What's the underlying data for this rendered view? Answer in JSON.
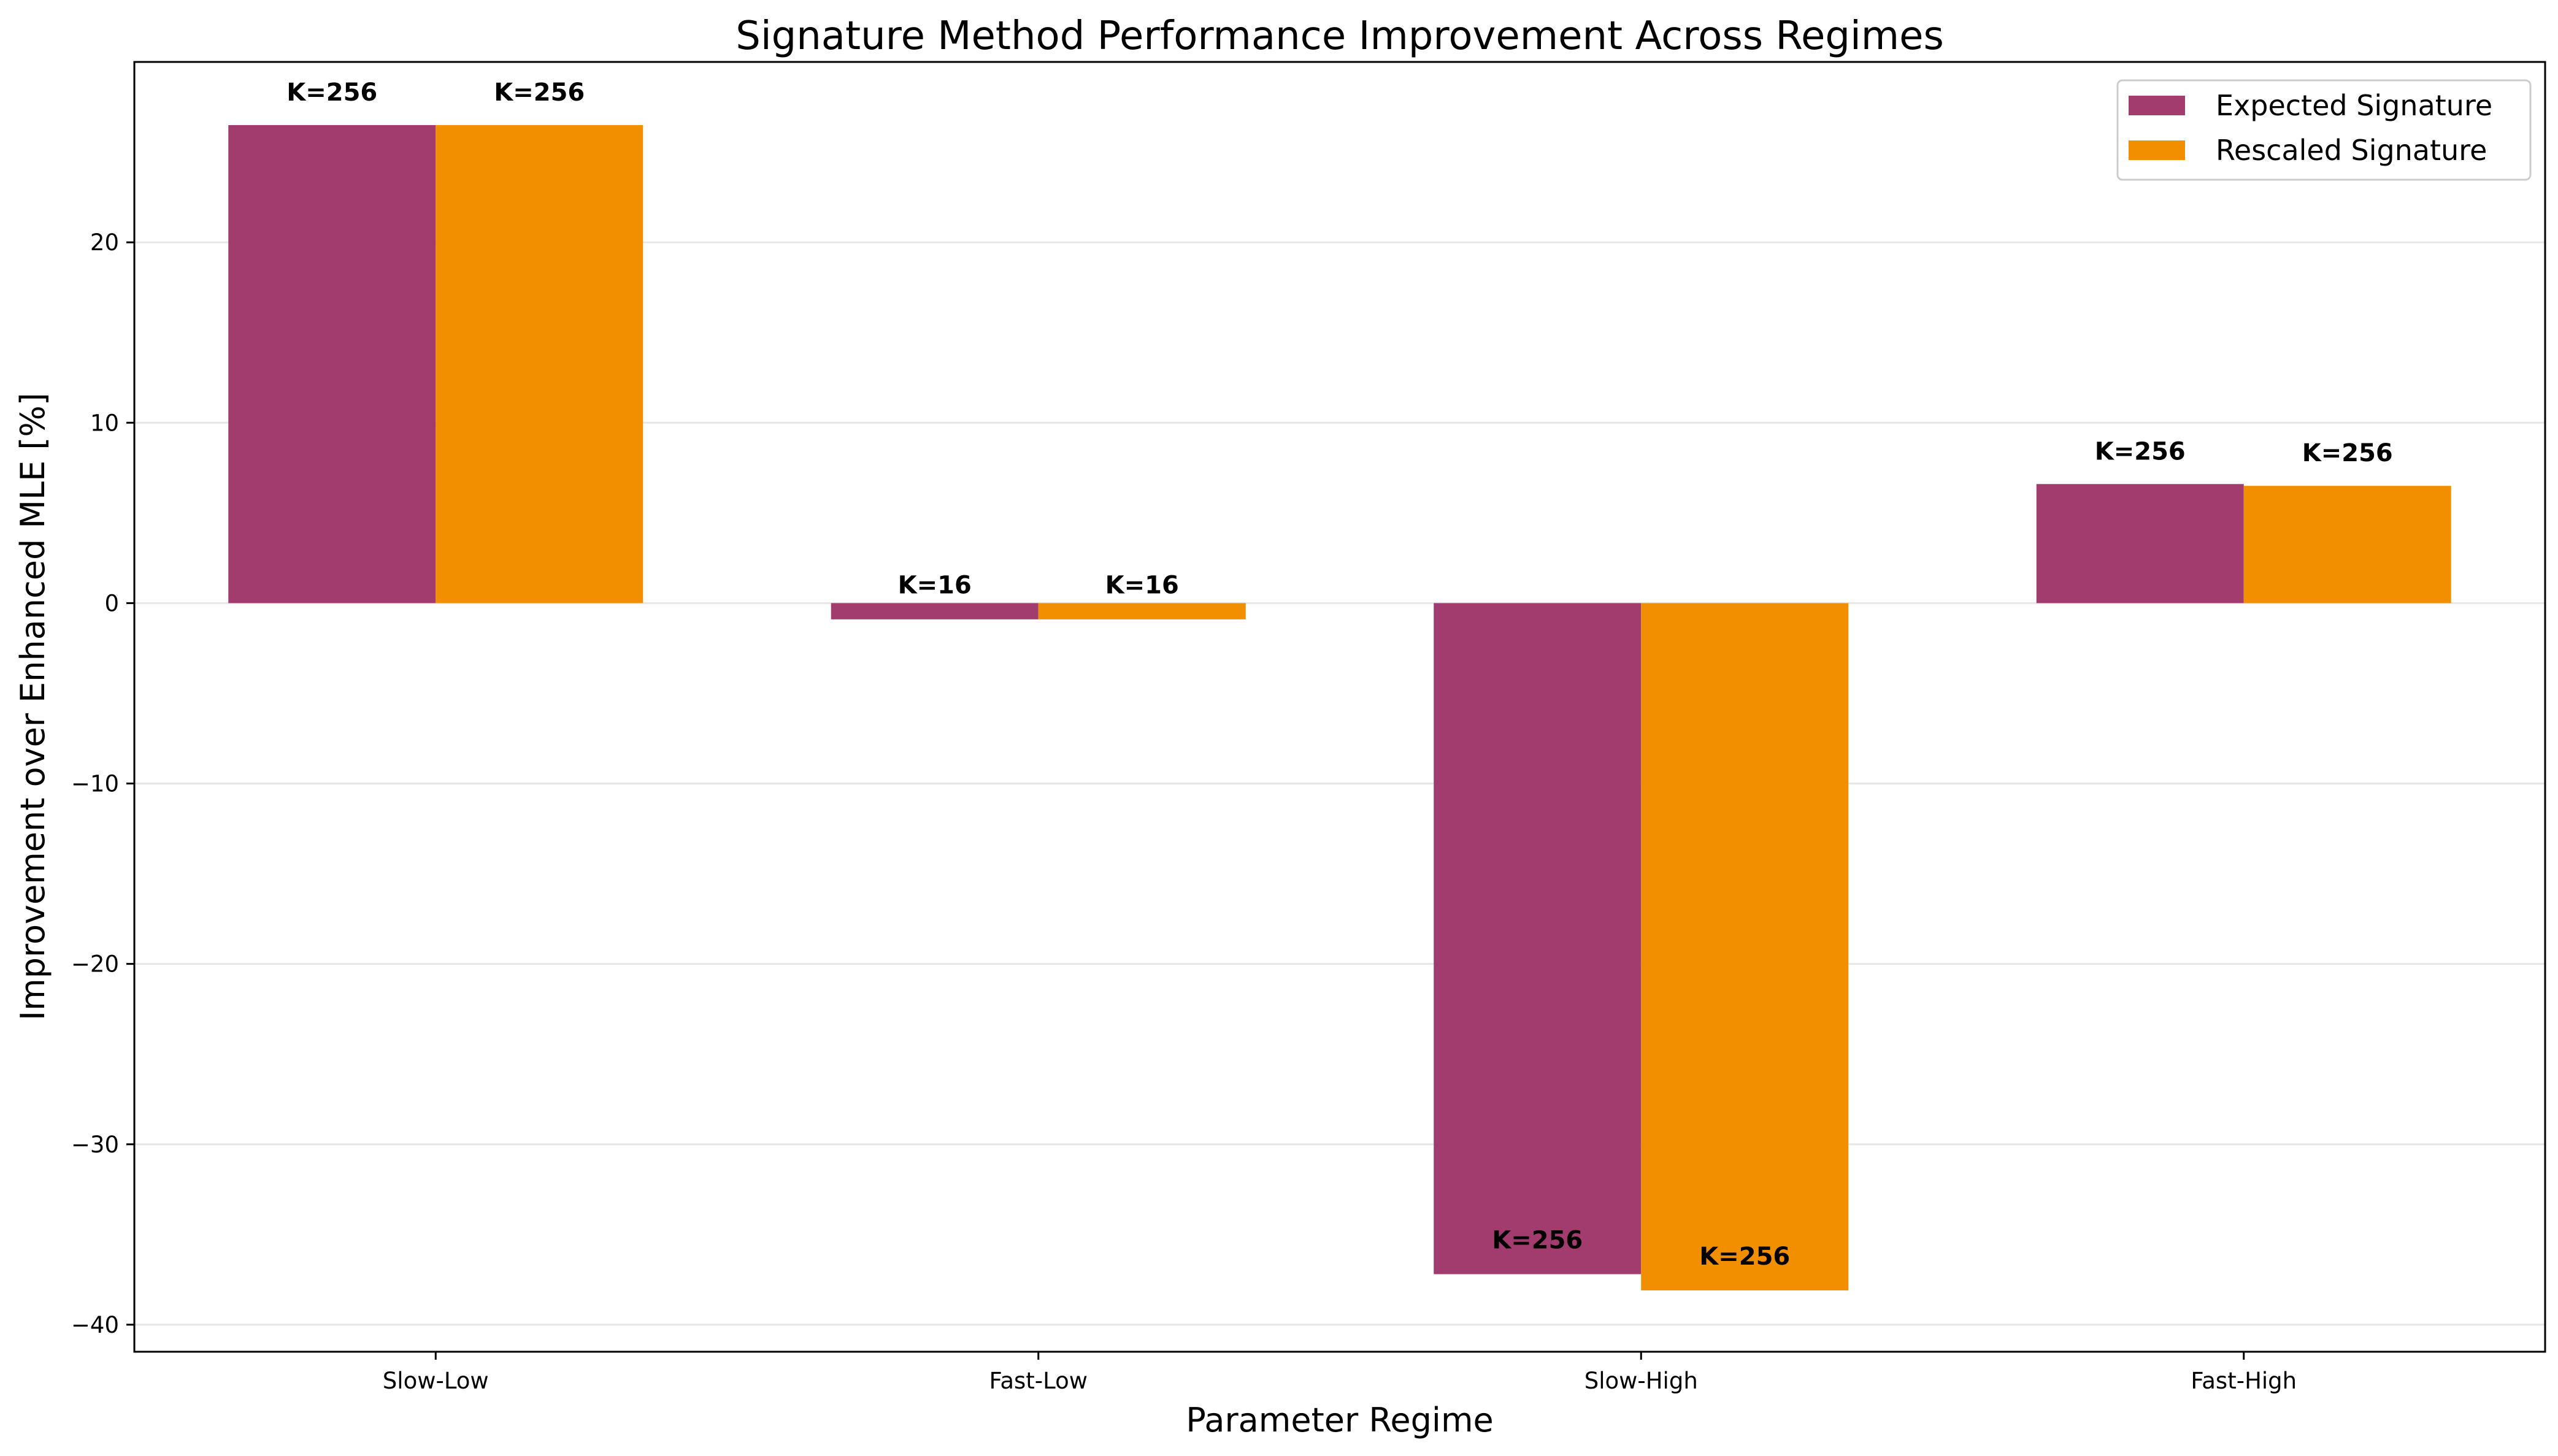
{
  "chart_data": {
    "type": "bar",
    "title": "Signature Method Performance Improvement Across Regimes",
    "xlabel": "Parameter Regime",
    "ylabel": "Improvement over Enhanced MLE [%]",
    "categories": [
      "Slow-Low",
      "Fast-Low",
      "Slow-High",
      "Fast-High"
    ],
    "ylim": [
      -41.5,
      30.0
    ],
    "yticks": [
      -40,
      -30,
      -20,
      -10,
      0,
      10,
      20
    ],
    "ytick_labels": [
      "−40",
      "−30",
      "−20",
      "−10",
      "0",
      "10",
      "20"
    ],
    "grid": "horizontal",
    "legend_position": "top-right",
    "series": [
      {
        "name": "Expected Signature",
        "color": "#A23B6E",
        "values": [
          26.5,
          -0.9,
          -37.2,
          6.6
        ],
        "labels": [
          "K=256",
          "K=16",
          "K=256",
          "K=256"
        ]
      },
      {
        "name": "Rescaled Signature",
        "color": "#F18F01",
        "values": [
          26.5,
          -0.9,
          -38.1,
          6.5
        ],
        "labels": [
          "K=256",
          "K=16",
          "K=256",
          "K=256"
        ]
      }
    ]
  }
}
